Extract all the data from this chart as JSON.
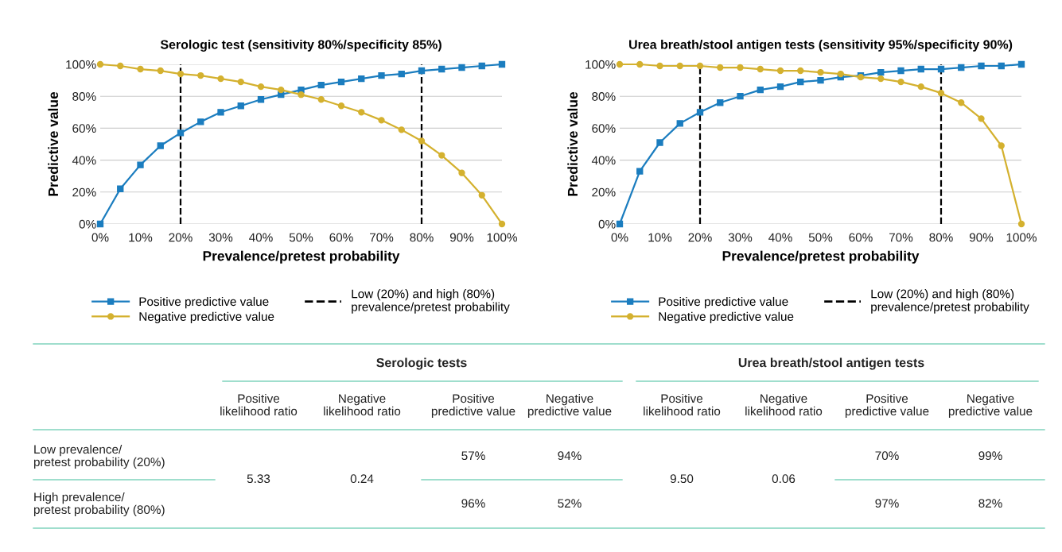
{
  "chart_data": [
    {
      "type": "line",
      "title": "Serologic test (sensitivity 80%/specificity 85%)",
      "xlabel": "Prevalence/pretest probability",
      "ylabel": "Predictive value",
      "x": [
        0,
        5,
        10,
        15,
        20,
        25,
        30,
        35,
        40,
        45,
        50,
        55,
        60,
        65,
        70,
        75,
        80,
        85,
        90,
        95,
        100
      ],
      "xlim": [
        0,
        100
      ],
      "ylim": [
        0,
        100
      ],
      "xticks": [
        {
          "value": 0,
          "label": "0%"
        },
        {
          "value": 10,
          "label": "10%"
        },
        {
          "value": 20,
          "label": "20%"
        },
        {
          "value": 30,
          "label": "30%"
        },
        {
          "value": 40,
          "label": "40%"
        },
        {
          "value": 50,
          "label": "50%"
        },
        {
          "value": 60,
          "label": "60%"
        },
        {
          "value": 70,
          "label": "70%"
        },
        {
          "value": 80,
          "label": "80%"
        },
        {
          "value": 90,
          "label": "90%"
        },
        {
          "value": 100,
          "label": "100%"
        }
      ],
      "yticks": [
        {
          "value": 0,
          "label": "0%"
        },
        {
          "value": 20,
          "label": "20%"
        },
        {
          "value": 40,
          "label": "40%"
        },
        {
          "value": 60,
          "label": "60%"
        },
        {
          "value": 80,
          "label": "80%"
        },
        {
          "value": 100,
          "label": "100%"
        }
      ],
      "series": [
        {
          "name": "Positive predictive value",
          "color": "#1b7dbf",
          "marker": "square",
          "values": [
            0,
            22,
            37,
            49,
            57,
            64,
            70,
            74,
            78,
            81,
            84,
            87,
            89,
            91,
            93,
            94,
            96,
            97,
            98,
            99,
            100
          ]
        },
        {
          "name": "Negative predictive value",
          "color": "#d4b12f",
          "marker": "circle",
          "values": [
            100,
            99,
            97,
            96,
            94,
            93,
            91,
            89,
            86,
            84,
            81,
            78,
            74,
            70,
            65,
            59,
            52,
            43,
            32,
            18,
            0
          ]
        }
      ],
      "ref_lines": [
        {
          "axis": "x",
          "value": 20,
          "label": "Low (20%) and high (80%)\nprevalence/pretest probability",
          "color": "#000000",
          "line_style": "dashed"
        },
        {
          "axis": "x",
          "value": 80,
          "color": "#000000",
          "line_style": "dashed"
        }
      ],
      "grid": "y",
      "legend": "bottom",
      "line_style": "solid"
    },
    {
      "type": "line",
      "title": "Urea breath/stool antigen tests (sensitivity 95%/specificity 90%)",
      "xlabel": "Prevalence/pretest probability",
      "ylabel": "Predictive value",
      "x": [
        0,
        5,
        10,
        15,
        20,
        25,
        30,
        35,
        40,
        45,
        50,
        55,
        60,
        65,
        70,
        75,
        80,
        85,
        90,
        95,
        100
      ],
      "xlim": [
        0,
        100
      ],
      "ylim": [
        0,
        100
      ],
      "xticks": [
        {
          "value": 0,
          "label": "0%"
        },
        {
          "value": 10,
          "label": "10%"
        },
        {
          "value": 20,
          "label": "20%"
        },
        {
          "value": 30,
          "label": "30%"
        },
        {
          "value": 40,
          "label": "40%"
        },
        {
          "value": 50,
          "label": "50%"
        },
        {
          "value": 60,
          "label": "60%"
        },
        {
          "value": 70,
          "label": "70%"
        },
        {
          "value": 80,
          "label": "80%"
        },
        {
          "value": 90,
          "label": "90%"
        },
        {
          "value": 100,
          "label": "100%"
        }
      ],
      "yticks": [
        {
          "value": 0,
          "label": "0%"
        },
        {
          "value": 20,
          "label": "20%"
        },
        {
          "value": 40,
          "label": "40%"
        },
        {
          "value": 60,
          "label": "60%"
        },
        {
          "value": 80,
          "label": "80%"
        },
        {
          "value": 100,
          "label": "100%"
        }
      ],
      "series": [
        {
          "name": "Positive predictive value",
          "color": "#1b7dbf",
          "marker": "square",
          "values": [
            0,
            33,
            51,
            63,
            70,
            76,
            80,
            84,
            86,
            89,
            90,
            92,
            93,
            95,
            96,
            97,
            97,
            98,
            99,
            99,
            100
          ]
        },
        {
          "name": "Negative predictive value",
          "color": "#d4b12f",
          "marker": "circle",
          "values": [
            100,
            100,
            99,
            99,
            99,
            98,
            98,
            97,
            96,
            96,
            95,
            94,
            92,
            91,
            89,
            86,
            82,
            76,
            66,
            49,
            0
          ]
        }
      ],
      "ref_lines": [
        {
          "axis": "x",
          "value": 20,
          "label": "Low (20%) and high (80%)\nprevalence/pretest probability",
          "color": "#000000",
          "line_style": "dashed"
        },
        {
          "axis": "x",
          "value": 80,
          "color": "#000000",
          "line_style": "dashed"
        }
      ],
      "grid": "y",
      "legend": "bottom",
      "line_style": "solid"
    },
    {
      "type": "other",
      "annotations": [
        "Serologic tests",
        "Urea breath/stool antigen tests",
        "Positive\nlikelihood ratio",
        "Negative\nlikelihood ratio",
        "Positive\npredictive value",
        "Negative\npredictive value",
        "Positive\nlikelihood ratio",
        "Negative\nlikelihood ratio",
        "Positive\npredictive value",
        "Negative\npredictive value",
        "Low prevalence/\npretest probability (20%)",
        "57%",
        "94%",
        "70%",
        "99%",
        "5.33",
        "0.24",
        "9.50",
        "0.06",
        "High prevalence/\npretest probability (80%)",
        "96%",
        "52%",
        "97%",
        "82%"
      ]
    }
  ]
}
